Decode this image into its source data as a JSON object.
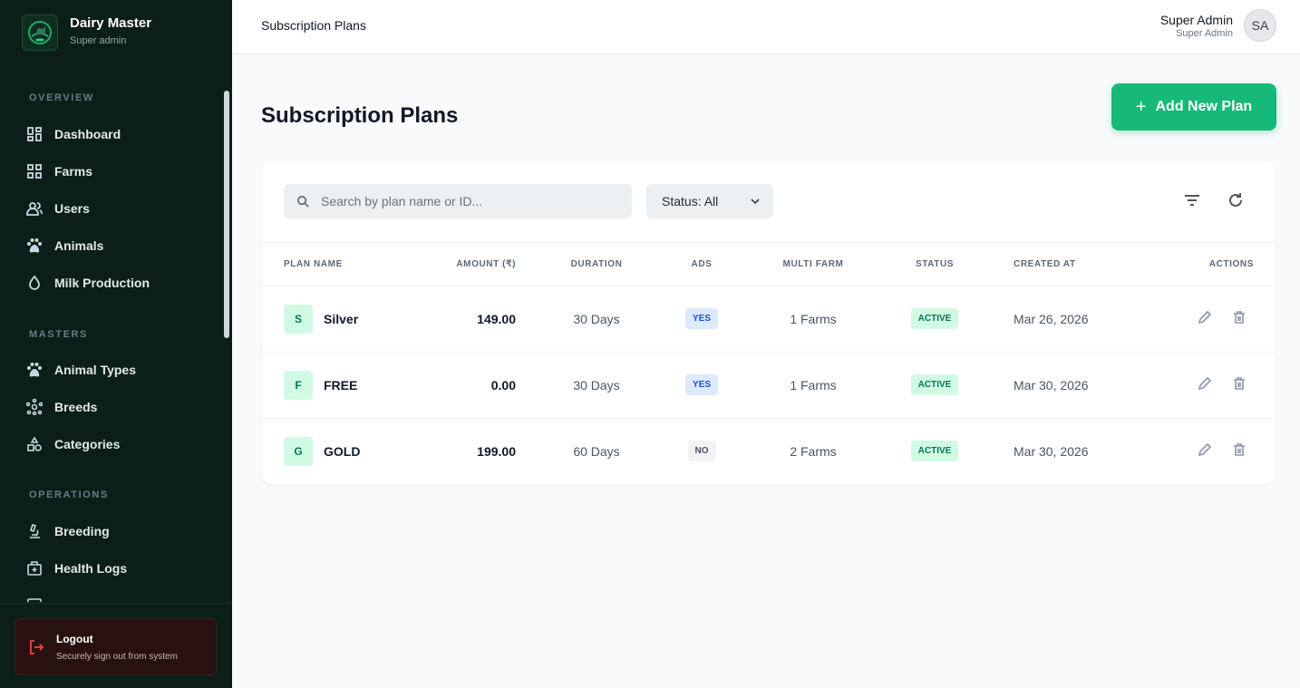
{
  "brand": {
    "title": "Dairy Master",
    "subtitle": "Super admin"
  },
  "sidebar": {
    "sections": [
      {
        "label": "OVERVIEW",
        "items": [
          {
            "label": "Dashboard",
            "icon": "dashboard-icon"
          },
          {
            "label": "Farms",
            "icon": "grid-icon"
          },
          {
            "label": "Users",
            "icon": "users-icon"
          },
          {
            "label": "Animals",
            "icon": "paw-icon"
          },
          {
            "label": "Milk Production",
            "icon": "drop-icon"
          }
        ]
      },
      {
        "label": "MASTERS",
        "items": [
          {
            "label": "Animal Types",
            "icon": "paw-icon"
          },
          {
            "label": "Breeds",
            "icon": "molecule-icon"
          },
          {
            "label": "Categories",
            "icon": "shapes-icon"
          }
        ]
      },
      {
        "label": "OPERATIONS",
        "items": [
          {
            "label": "Breeding",
            "icon": "microscope-icon"
          },
          {
            "label": "Health Logs",
            "icon": "medical-kit-icon"
          }
        ]
      }
    ],
    "logout": {
      "label": "Logout",
      "subtitle": "Securely sign out from system"
    }
  },
  "topbar": {
    "breadcrumb": "Subscription Plans",
    "user_name": "Super Admin",
    "user_role": "Super Admin",
    "avatar": "SA"
  },
  "page": {
    "title": "Subscription Plans",
    "add_button": "Add New Plan"
  },
  "filters": {
    "search_placeholder": "Search by plan name or ID...",
    "status": "Status: All"
  },
  "table": {
    "columns": [
      "Plan Name",
      "Amount (₹)",
      "Duration",
      "Ads",
      "Multi Farm",
      "Status",
      "Created At",
      "Actions"
    ],
    "rows": [
      {
        "initial": "S",
        "name": "Silver",
        "amount": "149.00",
        "duration": "30 Days",
        "ads": "YES",
        "multi_farm": "1 Farms",
        "status": "ACTIVE",
        "created": "Mar 26, 2026"
      },
      {
        "initial": "F",
        "name": "FREE",
        "amount": "0.00",
        "duration": "30 Days",
        "ads": "YES",
        "multi_farm": "1 Farms",
        "status": "ACTIVE",
        "created": "Mar 30, 2026"
      },
      {
        "initial": "G",
        "name": "GOLD",
        "amount": "199.00",
        "duration": "60 Days",
        "ads": "NO",
        "multi_farm": "2 Farms",
        "status": "ACTIVE",
        "created": "Mar 30, 2026"
      }
    ]
  },
  "colors": {
    "sidebar": "#0b1f18",
    "accent": "#16b978",
    "logout": "#2a1111"
  }
}
